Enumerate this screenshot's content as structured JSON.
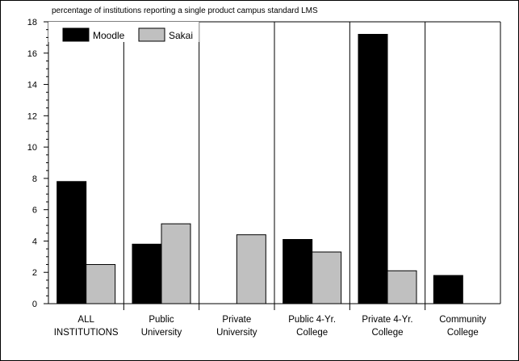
{
  "chart_data": {
    "type": "bar",
    "title": "percentage of institutions reporting a single product campus standard LMS",
    "categories": [
      [
        "ALL",
        "INSTITUTIONS"
      ],
      [
        "Public",
        "University"
      ],
      [
        "Private",
        "University"
      ],
      [
        "Public 4-Yr.",
        "College"
      ],
      [
        "Private 4-Yr.",
        "College"
      ],
      [
        "Community",
        "College"
      ]
    ],
    "series": [
      {
        "name": "Moodle",
        "color": "#000000",
        "values": [
          7.8,
          3.8,
          0,
          4.1,
          17.2,
          1.8
        ]
      },
      {
        "name": "Sakai",
        "color": "#c0c0c0",
        "values": [
          2.5,
          5.1,
          4.4,
          3.3,
          2.1,
          0
        ]
      }
    ],
    "ylim": [
      0,
      18
    ],
    "yticks": [
      0,
      2,
      4,
      6,
      8,
      10,
      12,
      14,
      16,
      18
    ],
    "xlabel": "",
    "ylabel": "",
    "grid": "vertical separators between categories",
    "legend_position": "top-left"
  }
}
